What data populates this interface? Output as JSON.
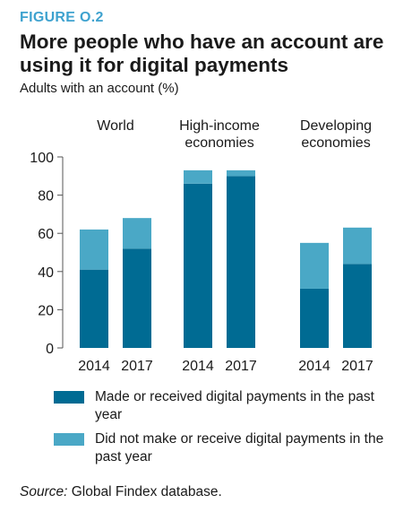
{
  "figure": {
    "label": "FIGURE O.2",
    "title": "More people who have an account are using it for digital payments",
    "subtitle": "Adults with an account (%)",
    "source_label": "Source:",
    "source_text": "Global Findex database."
  },
  "colors": {
    "digital": "#006b93",
    "non_digital": "#4aa8c6",
    "axis": "#555555",
    "text": "#1a1a1a",
    "accent": "#3ea2cf"
  },
  "chart_data": {
    "type": "bar",
    "stacked": true,
    "ylim": [
      0,
      100
    ],
    "yticks": [
      0,
      20,
      40,
      60,
      80,
      100
    ],
    "groups": [
      {
        "label": [
          "World"
        ],
        "categories": [
          "2014",
          "2017"
        ]
      },
      {
        "label": [
          "High-income",
          "economies"
        ],
        "categories": [
          "2014",
          "2017"
        ]
      },
      {
        "label": [
          "Developing",
          "economies"
        ],
        "categories": [
          "2014",
          "2017"
        ]
      }
    ],
    "series": [
      {
        "name": "Made or received digital payments in the past year",
        "values": [
          41,
          52,
          86,
          90,
          31,
          44
        ]
      },
      {
        "name": "Did not make or receive digital payments in the past year",
        "values": [
          21,
          16,
          7,
          3,
          24,
          19
        ]
      }
    ]
  }
}
